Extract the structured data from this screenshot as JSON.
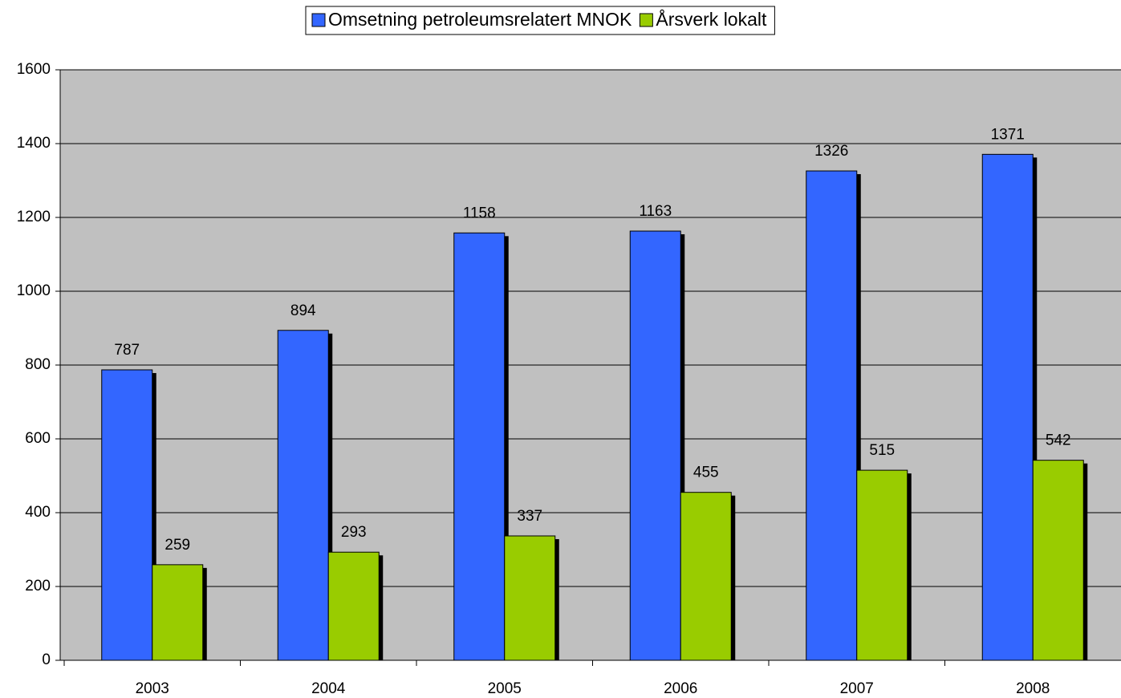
{
  "chart_data": {
    "type": "bar",
    "categories": [
      "2003",
      "2004",
      "2005",
      "2006",
      "2007",
      "2008"
    ],
    "series": [
      {
        "name": "Omsetning petroleumsrelatert MNOK",
        "color": "#3366ff",
        "values": [
          787,
          894,
          1158,
          1163,
          1326,
          1371
        ]
      },
      {
        "name": "Årsverk lokalt",
        "color": "#99cc00",
        "values": [
          259,
          293,
          337,
          455,
          515,
          542
        ]
      }
    ],
    "ylim": [
      0,
      1600
    ],
    "yticks": [
      0,
      200,
      400,
      600,
      800,
      1000,
      1200,
      1400,
      1600
    ],
    "grid": true,
    "legend": "top",
    "plot_background": "#c0c0c0"
  }
}
